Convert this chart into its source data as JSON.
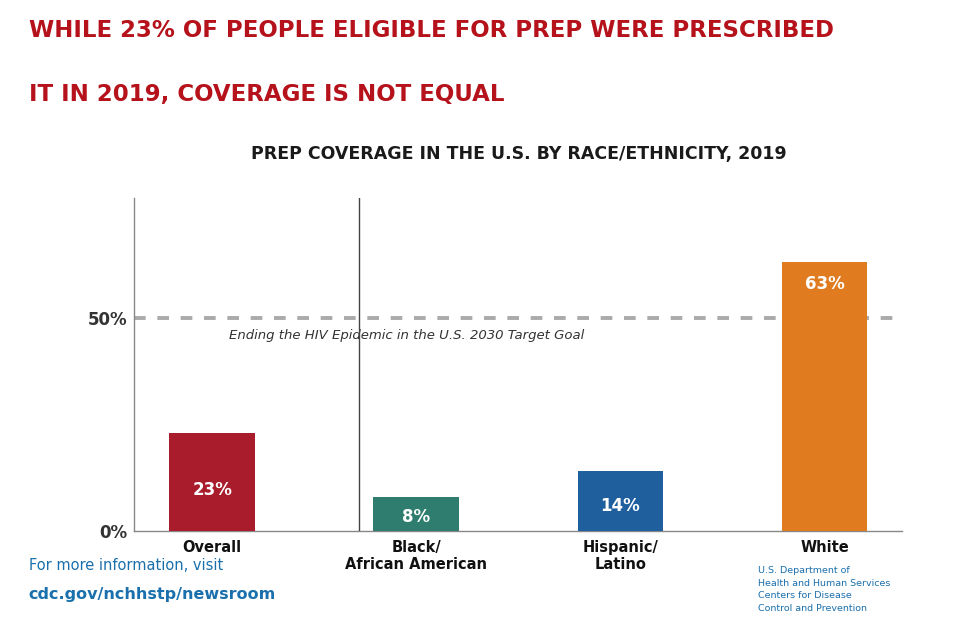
{
  "title_main_line1": "WHILE 23% OF PEOPLE ELIGIBLE FOR PREP WERE PRESCRIBED",
  "title_main_line2": "IT IN 2019, COVERAGE IS NOT EQUAL",
  "title_main_color": "#b5121b",
  "chart_title": "PREP COVERAGE IN THE U.S. BY RACE/ETHNICITY, 2019",
  "chart_title_color": "#1a1a1a",
  "categories": [
    "Overall",
    "Black/\nAfrican American",
    "Hispanic/\nLatino",
    "White"
  ],
  "values": [
    23,
    8,
    14,
    63
  ],
  "bar_colors": [
    "#a81c2b",
    "#2e7d6e",
    "#1f5f9e",
    "#e07b20"
  ],
  "bar_labels": [
    "23%",
    "8%",
    "14%",
    "63%"
  ],
  "bar_label_color": "#ffffff",
  "target_line_y": 50,
  "target_line_label": "Ending the HIV Epidemic in the U.S. 2030 Target Goal",
  "target_line_color": "#aaaaaa",
  "ytick_labels": [
    "0%",
    "50%"
  ],
  "ytick_values": [
    0,
    50
  ],
  "ylim": [
    0,
    78
  ],
  "footer_text1": "For more information, visit",
  "footer_text2": "cdc.gov/nchhstp/newsroom",
  "footer_color1": "#1a6fad",
  "footer_color2": "#1a6fad",
  "background_color": "#ffffff",
  "cdc_box_color": "#1a6fad",
  "hhs_text": "U.S. Department of\nHealth and Human Services\nCenters for Disease\nControl and Prevention",
  "hhs_text_color": "#1a6fad"
}
